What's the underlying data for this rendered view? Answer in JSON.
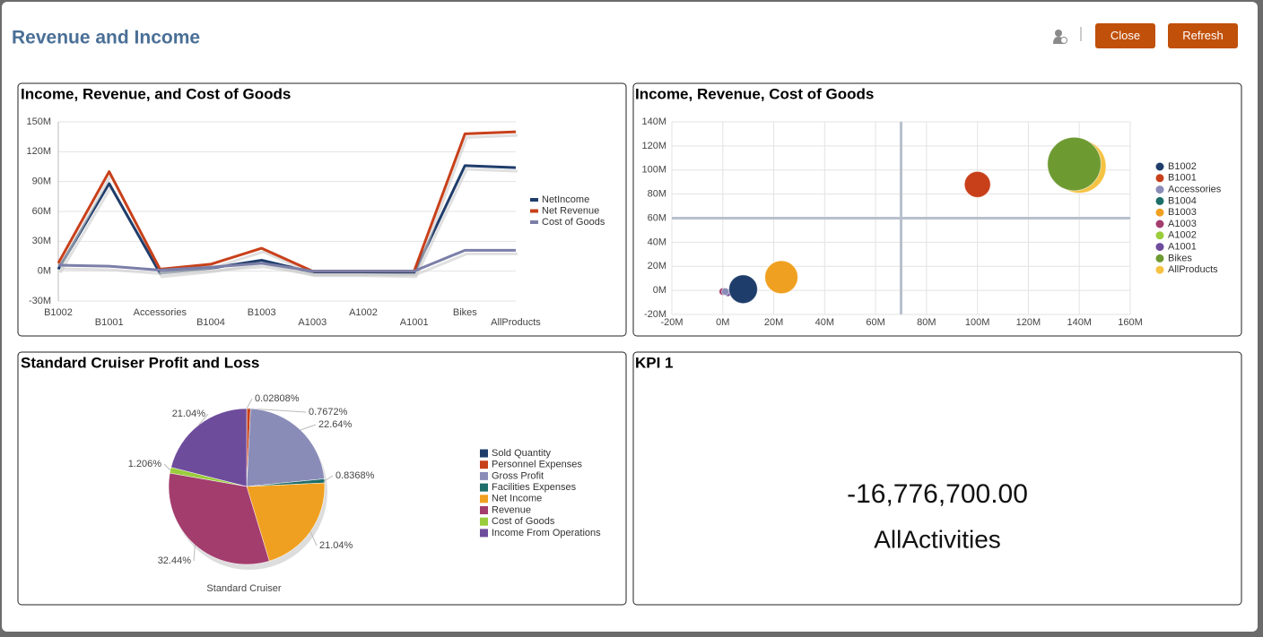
{
  "header": {
    "title": "Revenue and Income",
    "buttons": [
      "Close",
      "Refresh"
    ]
  },
  "chart_data": [
    {
      "type": "line",
      "title": "Income, Revenue, and Cost of Goods",
      "categories": [
        "B1002",
        "B1001",
        "Accessories",
        "B1004",
        "B1003",
        "A1003",
        "A1002",
        "A1001",
        "Bikes",
        "AllProducts"
      ],
      "series": [
        {
          "name": "NetIncome",
          "color": "#1f3d6b",
          "values": [
            2,
            88,
            -2,
            3,
            11,
            -1,
            -1,
            -2,
            106,
            104
          ]
        },
        {
          "name": "Net Revenue",
          "color": "#c8401a",
          "values": [
            8,
            100,
            2,
            7,
            23,
            0,
            0,
            0,
            138,
            140
          ]
        },
        {
          "name": "Cost of Goods",
          "color": "#7b7fa8",
          "values": [
            6,
            5,
            1,
            4,
            8,
            0,
            0,
            0,
            21,
            21
          ]
        }
      ],
      "ylim": [
        -30,
        150
      ],
      "yticks": [
        {
          "value": -30,
          "label": "-30M"
        },
        {
          "value": 0,
          "label": "0M"
        },
        {
          "value": 30,
          "label": "30M"
        },
        {
          "value": 60,
          "label": "60M"
        },
        {
          "value": 90,
          "label": "90M"
        },
        {
          "value": 120,
          "label": "120M"
        },
        {
          "value": 150,
          "label": "150M"
        }
      ],
      "grid": true,
      "legend": "right"
    },
    {
      "type": "bubble",
      "title": "Income, Revenue, Cost of Goods",
      "series": [
        {
          "name": "B1002",
          "color": "#1f3d6b",
          "x": [
            8
          ],
          "values": [
            1
          ],
          "sizes": [
            6
          ]
        },
        {
          "name": "B1001",
          "color": "#c8401a",
          "x": [
            100
          ],
          "values": [
            88
          ],
          "sizes": [
            5
          ]
        },
        {
          "name": "Accessories",
          "color": "#8a8cb8",
          "x": [
            1
          ],
          "values": [
            -1
          ],
          "sizes": [
            0.4
          ]
        },
        {
          "name": "B1004",
          "color": "#1e6e6a",
          "x": [
            8
          ],
          "values": [
            0
          ],
          "sizes": [
            4
          ]
        },
        {
          "name": "B1003",
          "color": "#f0a020",
          "x": [
            23
          ],
          "values": [
            11
          ],
          "sizes": [
            8
          ]
        },
        {
          "name": "A1003",
          "color": "#a33d6e",
          "x": [
            0
          ],
          "values": [
            -1
          ],
          "sizes": [
            0.4
          ]
        },
        {
          "name": "A1002",
          "color": "#9acd3c",
          "x": [
            1
          ],
          "values": [
            -1
          ],
          "sizes": [
            0.2
          ]
        },
        {
          "name": "A1001",
          "color": "#6e4c9c",
          "x": [
            2
          ],
          "values": [
            -2
          ],
          "sizes": [
            0.4
          ]
        },
        {
          "name": "Bikes",
          "color": "#6e9a32",
          "x": [
            138
          ],
          "values": [
            105
          ],
          "sizes": [
            21
          ]
        },
        {
          "name": "AllProducts",
          "color": "#f5c242",
          "x": [
            140
          ],
          "values": [
            103
          ],
          "sizes": [
            21
          ]
        }
      ],
      "xlim": [
        -20,
        160
      ],
      "xticks": [
        {
          "value": -20,
          "label": "-20M"
        },
        {
          "value": 0,
          "label": "0M"
        },
        {
          "value": 20,
          "label": "20M"
        },
        {
          "value": 40,
          "label": "40M"
        },
        {
          "value": 60,
          "label": "60M"
        },
        {
          "value": 80,
          "label": "80M"
        },
        {
          "value": 100,
          "label": "100M"
        },
        {
          "value": 120,
          "label": "120M"
        },
        {
          "value": 140,
          "label": "140M"
        },
        {
          "value": 160,
          "label": "160M"
        }
      ],
      "ylim": [
        -20,
        140
      ],
      "yticks": [
        {
          "value": -20,
          "label": "-20M"
        },
        {
          "value": 0,
          "label": "0M"
        },
        {
          "value": 20,
          "label": "20M"
        },
        {
          "value": 40,
          "label": "40M"
        },
        {
          "value": 60,
          "label": "60M"
        },
        {
          "value": 80,
          "label": "80M"
        },
        {
          "value": 100,
          "label": "100M"
        },
        {
          "value": 120,
          "label": "120M"
        },
        {
          "value": 140,
          "label": "140M"
        }
      ],
      "reference_lines": {
        "x": 70,
        "y": 60
      },
      "grid": true,
      "legend": "right"
    },
    {
      "type": "pie",
      "title": "Standard Cruiser Profit and Loss",
      "subtitle": "Standard Cruiser",
      "categories": [
        "Sold Quantity",
        "Personnel Expenses",
        "Gross Profit",
        "Facilities Expenses",
        "Net Income",
        "Revenue",
        "Cost of Goods",
        "Income From Operations"
      ],
      "values": [
        0.02808,
        0.7672,
        22.64,
        0.8368,
        21.04,
        32.44,
        1.206,
        21.04
      ],
      "value_labels": [
        "0.02808%",
        "0.7672%",
        "22.64%",
        "0.8368%",
        "21.04%",
        "32.44%",
        "1.206%",
        "21.04%"
      ],
      "colors": [
        "#1f3d6b",
        "#c8401a",
        "#8a8cb8",
        "#1e6e6a",
        "#f0a020",
        "#a33d6e",
        "#9acd3c",
        "#6e4c9c"
      ],
      "legend": "right"
    }
  ],
  "kpi": {
    "title": "KPI 1",
    "value": "-16,776,700.00",
    "label": "AllActivities"
  }
}
